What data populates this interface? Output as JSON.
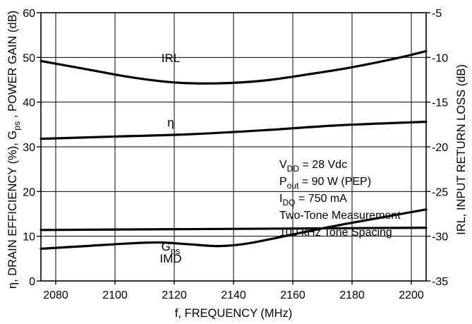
{
  "chart_data": {
    "type": "line",
    "xlabel": "f, FREQUENCY (MHz)",
    "ylabel_left": "η, DRAIN EFFICIENCY (%), G<sub>ps</sub> , POWER GAIN (dB)",
    "ylabel_right": "IRL, INPUT RETURN LOSS (dB)",
    "xlim": [
      2075,
      2205
    ],
    "ylim_left": [
      0,
      60
    ],
    "ylim_right": [
      -35,
      -5
    ],
    "x_ticks": [
      "2080",
      "2100",
      "2120",
      "2140",
      "2160",
      "2180",
      "2200"
    ],
    "y_ticks_left": [
      "0",
      "10",
      "20",
      "30",
      "40",
      "50",
      "60"
    ],
    "y_ticks_right": [
      "-35",
      "-30",
      "-25",
      "-20",
      "-15",
      "-10",
      "-5"
    ],
    "grid": true,
    "series": [
      {
        "name": "IRL",
        "axis": "right",
        "label": "IRL",
        "x": [
          2075,
          2090,
          2105,
          2120,
          2135,
          2150,
          2165,
          2180,
          2195,
          2205
        ],
        "y": [
          -10.4,
          -11.3,
          -12.2,
          -12.8,
          -12.9,
          -12.6,
          -11.9,
          -11.1,
          -10.1,
          -9.3
        ]
      },
      {
        "name": "η",
        "axis": "left",
        "label": "η",
        "x": [
          2075,
          2100,
          2125,
          2150,
          2175,
          2205
        ],
        "y": [
          31.8,
          32.3,
          32.8,
          33.7,
          34.8,
          35.6
        ]
      },
      {
        "name": "Gps",
        "axis": "left",
        "label": "G<sub>ps</sub>",
        "x": [
          2075,
          2205
        ],
        "y": [
          11.4,
          11.9
        ]
      },
      {
        "name": "IMD",
        "axis": "right",
        "label": "IMD",
        "x": [
          2075,
          2090,
          2105,
          2115,
          2125,
          2135,
          2145,
          2160,
          2175,
          2190,
          2205
        ],
        "y": [
          -31.4,
          -31.1,
          -30.8,
          -30.7,
          -30.9,
          -31.1,
          -30.8,
          -29.8,
          -28.8,
          -27.9,
          -27.0
        ]
      }
    ],
    "conditions": [
      "V<sub>DD</sub> = 28 Vdc",
      "P<sub>out</sub> = 90 W (PEP)",
      "I<sub>DQ</sub> = 750 mA",
      "Two-Tone Measurement",
      "100 kHz Tone Spacing"
    ]
  }
}
